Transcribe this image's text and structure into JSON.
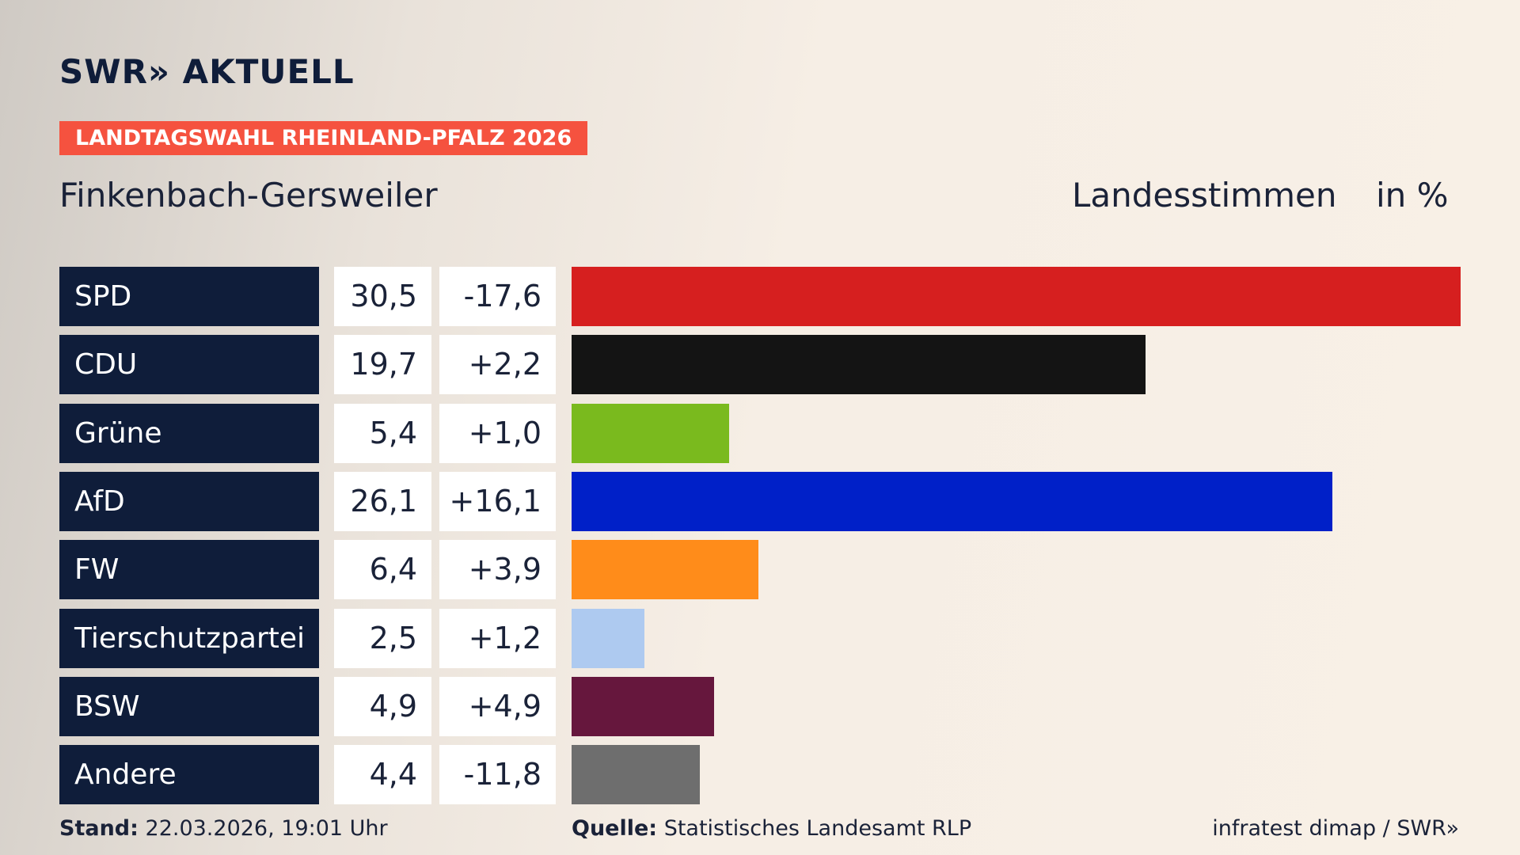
{
  "chart_data": {
    "type": "bar",
    "brand": "SWR» AKTUELL",
    "banner": "LANDTAGSWAHL RHEINLAND-PFALZ 2026",
    "title": "Finkenbach-Gersweiler",
    "measure": "Landesstimmen",
    "unit": "in %",
    "categories": [
      "SPD",
      "CDU",
      "Grüne",
      "AfD",
      "FW",
      "Tierschutzpartei",
      "BSW",
      "Andere"
    ],
    "values": [
      30.5,
      19.7,
      5.4,
      26.1,
      6.4,
      2.5,
      4.9,
      4.4
    ],
    "value_labels": [
      "30,5",
      "19,7",
      "5,4",
      "26,1",
      "6,4",
      "2,5",
      "4,9",
      "4,4"
    ],
    "changes": [
      -17.6,
      2.2,
      1.0,
      16.1,
      3.9,
      1.2,
      4.9,
      -11.8
    ],
    "change_labels": [
      "-17,6",
      "+2,2",
      "+1,0",
      "+16,1",
      "+3,9",
      "+1,2",
      "+4,9",
      "-11,8"
    ],
    "colors": [
      "#d61f1f",
      "#141414",
      "#7aba1e",
      "#0020c8",
      "#ff8c1a",
      "#aecaf0",
      "#66173d",
      "#6e6e6e"
    ],
    "footer": {
      "stand_label": "Stand:",
      "stand": "22.03.2026, 19:01 Uhr",
      "source_label": "Quelle:",
      "source": "Statistisches Landesamt RLP",
      "credit": "infratest dimap / SWR»"
    }
  }
}
